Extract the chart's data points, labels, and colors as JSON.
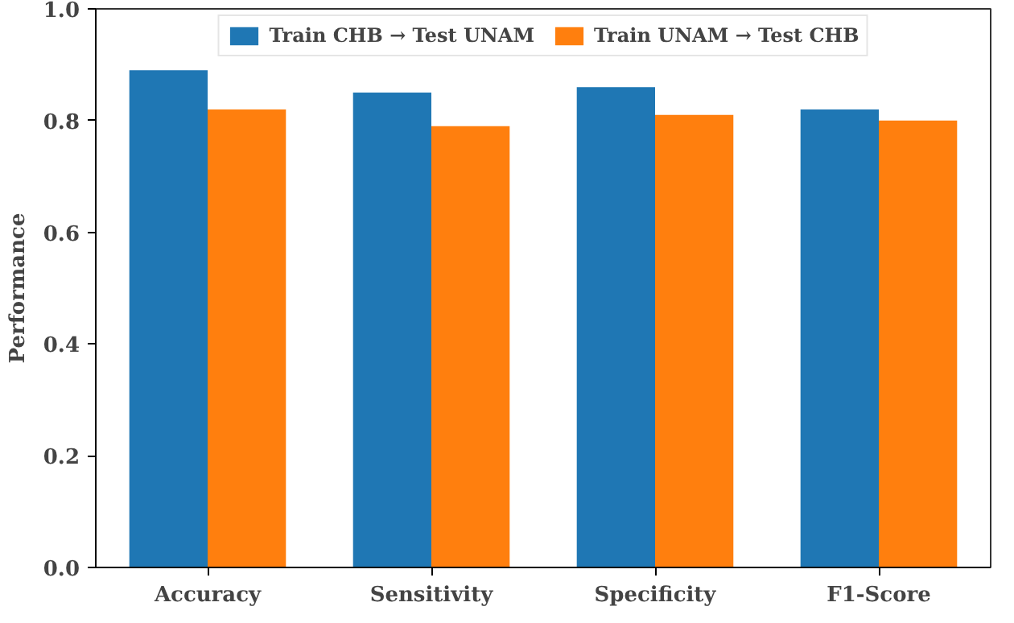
{
  "chart_data": {
    "type": "bar",
    "ylabel": "Performance",
    "categories": [
      "Accuracy",
      "Sensitivity",
      "Specificity",
      "F1-Score"
    ],
    "series": [
      {
        "name": "Train CHB → Test UNAM",
        "color": "#1f77b4",
        "values": [
          0.89,
          0.85,
          0.86,
          0.82
        ]
      },
      {
        "name": "Train UNAM → Test CHB",
        "color": "#ff7f0e",
        "values": [
          0.82,
          0.79,
          0.81,
          0.8
        ]
      }
    ],
    "ylim": [
      0,
      1
    ],
    "yticks": [
      {
        "value": 0,
        "label": "0.0"
      },
      0.2,
      0.4,
      0.6,
      0.8,
      {
        "value": 1,
        "label": "1.0"
      }
    ],
    "grid": false,
    "legend": "top"
  }
}
